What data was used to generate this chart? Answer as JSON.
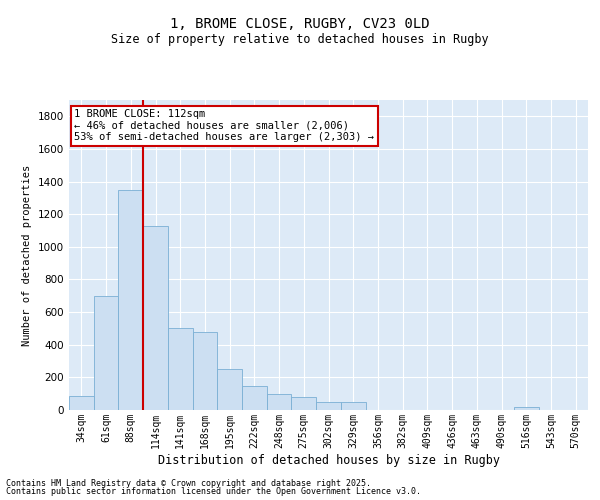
{
  "title1": "1, BROME CLOSE, RUGBY, CV23 0LD",
  "title2": "Size of property relative to detached houses in Rugby",
  "xlabel": "Distribution of detached houses by size in Rugby",
  "ylabel": "Number of detached properties",
  "bar_color": "#ccdff2",
  "bar_edge_color": "#7aafd4",
  "background_color": "#ddeaf7",
  "categories": [
    "34sqm",
    "61sqm",
    "88sqm",
    "114sqm",
    "141sqm",
    "168sqm",
    "195sqm",
    "222sqm",
    "248sqm",
    "275sqm",
    "302sqm",
    "329sqm",
    "356sqm",
    "382sqm",
    "409sqm",
    "436sqm",
    "463sqm",
    "490sqm",
    "516sqm",
    "543sqm",
    "570sqm"
  ],
  "values": [
    88,
    700,
    1350,
    1130,
    500,
    480,
    250,
    150,
    100,
    80,
    50,
    50,
    0,
    0,
    0,
    0,
    0,
    0,
    20,
    0,
    0
  ],
  "ylim": [
    0,
    1900
  ],
  "yticks": [
    0,
    200,
    400,
    600,
    800,
    1000,
    1200,
    1400,
    1600,
    1800
  ],
  "vline_color": "#cc0000",
  "vline_pos": 2.5,
  "annotation_text": "1 BROME CLOSE: 112sqm\n← 46% of detached houses are smaller (2,006)\n53% of semi-detached houses are larger (2,303) →",
  "annotation_box_facecolor": "#ffffff",
  "annotation_box_edgecolor": "#cc0000",
  "footer1": "Contains HM Land Registry data © Crown copyright and database right 2025.",
  "footer2": "Contains public sector information licensed under the Open Government Licence v3.0."
}
